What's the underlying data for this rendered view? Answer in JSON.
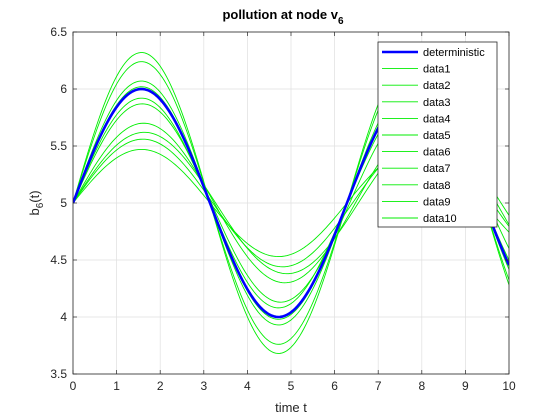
{
  "chart_data": {
    "type": "line",
    "title_main": "pollution at node v",
    "title_sub": "6",
    "xlabel": "time t",
    "ylabel_main": "b",
    "ylabel_sub": "6",
    "ylabel_tail": "(t)",
    "xlim": [
      0,
      10
    ],
    "ylim": [
      3.5,
      6.5
    ],
    "xticks": [
      "0",
      "1",
      "2",
      "3",
      "4",
      "5",
      "6",
      "7",
      "8",
      "9",
      "10"
    ],
    "yticks": [
      "3.5",
      "4",
      "4.5",
      "5",
      "5.5",
      "6",
      "6.5"
    ],
    "grid": true,
    "legend_position": "top-right",
    "colors": {
      "deterministic": "#0000ff",
      "data": "#00ee00"
    },
    "series": [
      {
        "name": "deterministic",
        "a": 1.0,
        "w": 1.0
      },
      {
        "name": "data1",
        "a": 1.32,
        "w": 1.0
      },
      {
        "name": "data2",
        "a": 1.24,
        "w": 1.0
      },
      {
        "name": "data3",
        "a": 1.07,
        "w": 1.0
      },
      {
        "name": "data4",
        "a": 1.02,
        "w": 1.0
      },
      {
        "name": "data5",
        "a": 0.92,
        "w": 1.0
      },
      {
        "name": "data6",
        "a": 0.7,
        "w": 0.97
      },
      {
        "name": "data7",
        "a": 0.62,
        "w": 0.96
      },
      {
        "name": "data8",
        "a": 0.56,
        "w": 0.98
      },
      {
        "name": "data9",
        "a": 0.47,
        "w": 1.0
      },
      {
        "name": "data10",
        "a": 0.87,
        "w": 0.99
      }
    ]
  }
}
